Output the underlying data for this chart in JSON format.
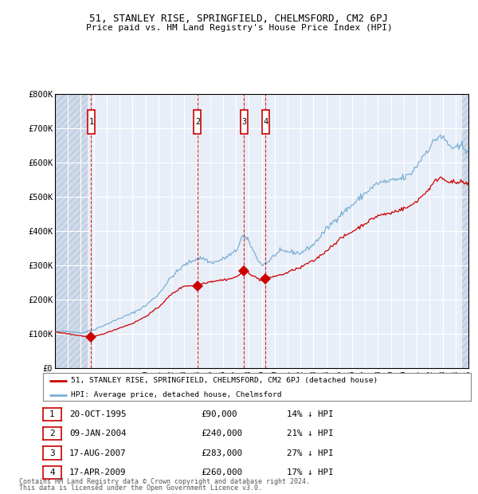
{
  "title1": "51, STANLEY RISE, SPRINGFIELD, CHELMSFORD, CM2 6PJ",
  "title2": "Price paid vs. HM Land Registry's House Price Index (HPI)",
  "ylim": [
    0,
    800000
  ],
  "yticks": [
    0,
    100000,
    200000,
    300000,
    400000,
    500000,
    600000,
    700000,
    800000
  ],
  "ytick_labels": [
    "£0",
    "£100K",
    "£200K",
    "£300K",
    "£400K",
    "£500K",
    "£600K",
    "£700K",
    "£800K"
  ],
  "xlim_start": 1993.0,
  "xlim_end": 2025.0,
  "background_color": "#ffffff",
  "plot_bg_color": "#e8eef8",
  "hatch_color": "#d0daea",
  "grid_color": "#ffffff",
  "sale_dates": [
    1995.8,
    2004.03,
    2007.63,
    2009.29
  ],
  "sale_prices": [
    90000,
    240000,
    283000,
    260000
  ],
  "sale_labels": [
    "1",
    "2",
    "3",
    "4"
  ],
  "vline_color": "#cc0000",
  "marker_color": "#cc0000",
  "red_line_color": "#cc0000",
  "blue_line_color": "#7ab0d4",
  "legend_red_label": "51, STANLEY RISE, SPRINGFIELD, CHELMSFORD, CM2 6PJ (detached house)",
  "legend_blue_label": "HPI: Average price, detached house, Chelmsford",
  "table_rows": [
    [
      "1",
      "20-OCT-1995",
      "£90,000",
      "14% ↓ HPI"
    ],
    [
      "2",
      "09-JAN-2004",
      "£240,000",
      "21% ↓ HPI"
    ],
    [
      "3",
      "17-AUG-2007",
      "£283,000",
      "27% ↓ HPI"
    ],
    [
      "4",
      "17-APR-2009",
      "£260,000",
      "17% ↓ HPI"
    ]
  ],
  "footnote1": "Contains HM Land Registry data © Crown copyright and database right 2024.",
  "footnote2": "This data is licensed under the Open Government Licence v3.0.",
  "hatch_left_end": 1995.5,
  "hatch_right_start": 2024.5,
  "blue_anchors": {
    "1993.0": 105000,
    "1994.0": 108000,
    "1995.0": 102000,
    "1996.0": 112000,
    "1997.0": 128000,
    "1998.0": 145000,
    "1999.0": 160000,
    "2000.0": 182000,
    "2001.0": 215000,
    "2002.0": 265000,
    "2003.0": 300000,
    "2004.0": 320000,
    "2004.5": 320000,
    "2005.0": 308000,
    "2005.5": 310000,
    "2006.0": 318000,
    "2007.0": 340000,
    "2007.5": 385000,
    "2008.0": 370000,
    "2008.5": 330000,
    "2009.0": 300000,
    "2009.5": 310000,
    "2010.0": 330000,
    "2010.5": 340000,
    "2011.0": 340000,
    "2012.0": 335000,
    "2013.0": 360000,
    "2014.0": 405000,
    "2015.0": 445000,
    "2016.0": 475000,
    "2017.0": 510000,
    "2018.0": 540000,
    "2019.0": 545000,
    "2020.0": 555000,
    "2020.5": 565000,
    "2021.0": 590000,
    "2021.5": 620000,
    "2022.0": 645000,
    "2022.5": 668000,
    "2022.8": 680000,
    "2023.0": 670000,
    "2023.3": 660000,
    "2023.5": 650000,
    "2024.0": 638000,
    "2024.5": 648000,
    "2025.0": 635000
  },
  "red_anchors": {
    "1993.0": 105000,
    "1994.0": 100000,
    "1995.0": 94000,
    "1995.8": 90000,
    "1996.5": 97000,
    "1997.0": 103000,
    "1998.0": 117000,
    "1999.0": 130000,
    "2000.0": 150000,
    "2001.0": 177000,
    "2002.0": 215000,
    "2003.0": 240000,
    "2004.03": 240000,
    "2004.5": 248000,
    "2005.0": 252000,
    "2005.5": 255000,
    "2006.0": 257000,
    "2006.5": 260000,
    "2007.0": 265000,
    "2007.63": 283000,
    "2008.0": 278000,
    "2008.5": 265000,
    "2009.0": 255000,
    "2009.29": 260000,
    "2009.5": 263000,
    "2010.0": 268000,
    "2010.5": 272000,
    "2011.0": 278000,
    "2011.5": 288000,
    "2012.0": 292000,
    "2012.5": 305000,
    "2013.0": 312000,
    "2014.0": 342000,
    "2015.0": 375000,
    "2016.0": 398000,
    "2017.0": 422000,
    "2018.0": 445000,
    "2019.0": 452000,
    "2019.5": 460000,
    "2020.0": 465000,
    "2020.5": 472000,
    "2021.0": 488000,
    "2021.5": 505000,
    "2022.0": 525000,
    "2022.5": 548000,
    "2022.8": 558000,
    "2023.0": 553000,
    "2023.5": 545000,
    "2024.0": 540000,
    "2024.5": 542000,
    "2025.0": 535000
  }
}
